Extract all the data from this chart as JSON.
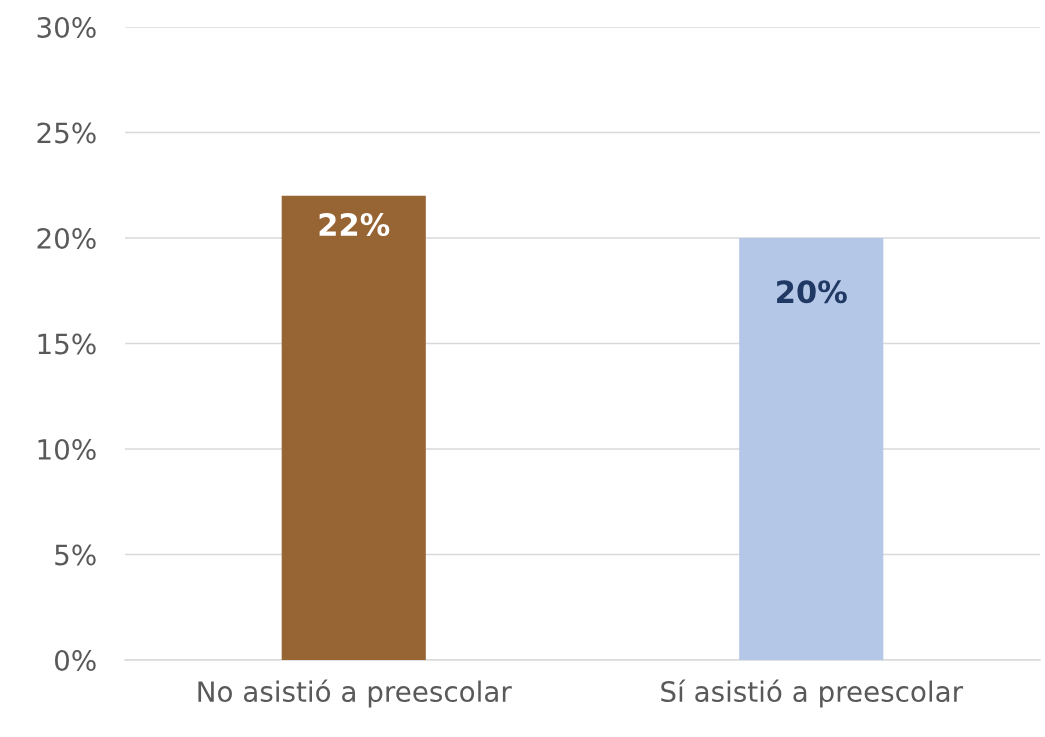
{
  "chart_data": {
    "type": "bar",
    "categories": [
      "No asistió a preescolar",
      "Sí asistió a preescolar"
    ],
    "values": [
      22,
      20
    ],
    "colors": [
      "#976434",
      "#b4c7e7"
    ],
    "value_labels": [
      "22%",
      "20%"
    ],
    "ylim": [
      0,
      30
    ],
    "yticks": [
      {
        "value": 0,
        "label": "0%"
      },
      {
        "value": 5,
        "label": "5%"
      },
      {
        "value": 10,
        "label": "10%"
      },
      {
        "value": 15,
        "label": "15%"
      },
      {
        "value": 20,
        "label": "20%"
      },
      {
        "value": 25,
        "label": "25%"
      },
      {
        "value": 30,
        "label": "30%"
      }
    ],
    "grid": "y",
    "legend": false
  }
}
